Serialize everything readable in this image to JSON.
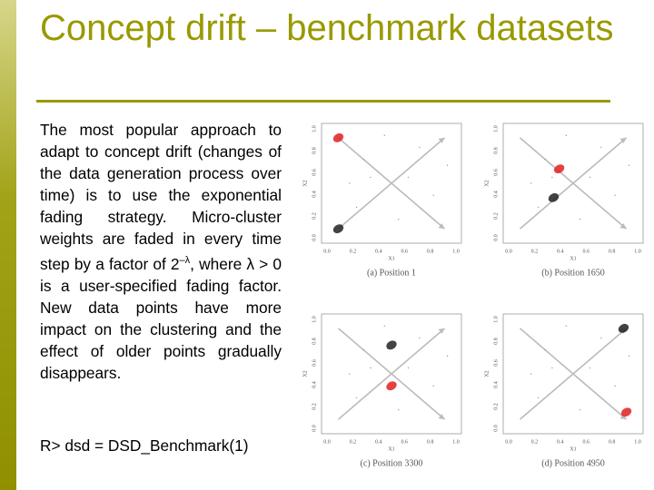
{
  "title": "Concept drift – benchmark datasets",
  "body": {
    "paragraph_before": "The most popular approach to adapt to concept drift (changes of the data generation process over time) is to use the exponential fading strategy. Micro-cluster weights are faded in every time step by a factor of 2",
    "paragraph_superscript": "–λ",
    "paragraph_after": ", where λ > 0 is a user-specified fading factor. New data points have more impact on the clustering and the effect of older points gradually disappears.",
    "code": "R> dsd = DSD_Benchmark(1)"
  },
  "figures": [
    {
      "caption": "(a) Position 1",
      "x_label": "X1",
      "y_label": "X2",
      "ticks": [
        "0.0",
        "0.2",
        "0.4",
        "0.6",
        "0.8",
        "1.0"
      ]
    },
    {
      "caption": "(b) Position 1650",
      "x_label": "X1",
      "y_label": "X2",
      "ticks": [
        "0.0",
        "0.2",
        "0.4",
        "0.6",
        "0.8",
        "1.0"
      ]
    },
    {
      "caption": "(c) Position 3300",
      "x_label": "X1",
      "y_label": "X2",
      "ticks": [
        "0.0",
        "0.2",
        "0.4",
        "0.6",
        "0.8",
        "1.0"
      ]
    },
    {
      "caption": "(d) Position 4950",
      "x_label": "X1",
      "y_label": "X2",
      "ticks": [
        "0.0",
        "0.2",
        "0.4",
        "0.6",
        "0.8",
        "1.0"
      ]
    }
  ]
}
